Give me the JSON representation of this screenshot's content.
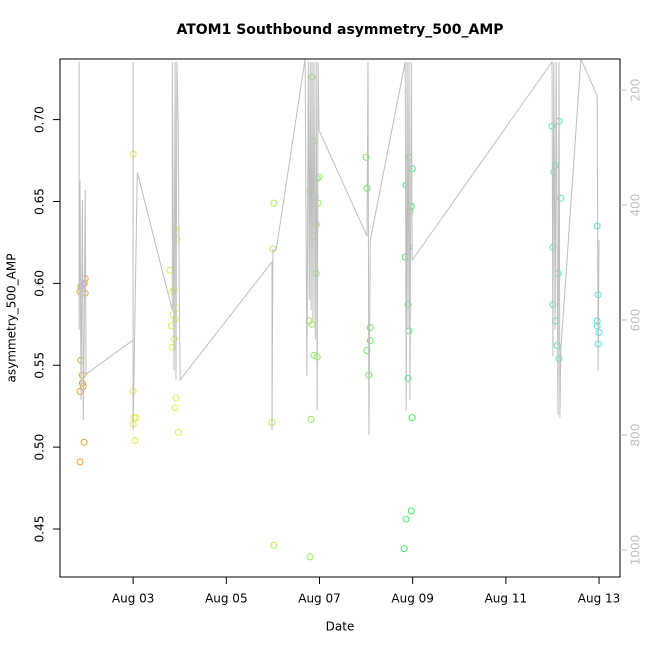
{
  "chart_data": {
    "type": "scatter",
    "title": "ATOM1 Southbound asymmetry_500_AMP",
    "x_label": "Date",
    "y_label": "asymmetry_500_AMP",
    "xlim": [
      1.43,
      13.45
    ],
    "xticks": [
      {
        "value": 3,
        "label": "Aug 03"
      },
      {
        "value": 5,
        "label": "Aug 05"
      },
      {
        "value": 7,
        "label": "Aug 07"
      },
      {
        "value": 9,
        "label": "Aug 09"
      },
      {
        "value": 11,
        "label": "Aug 11"
      },
      {
        "value": 13,
        "label": "Aug 13"
      }
    ],
    "ylim": [
      0.4207,
      0.737
    ],
    "yticks": [
      0.45,
      {
        "value": 0.5,
        "label": "0.50"
      },
      0.55,
      {
        "value": 0.6,
        "label": "0.60"
      },
      0.65,
      {
        "value": 0.7,
        "label": "0.70"
      }
    ],
    "y2lim": [
      1047,
      146
    ],
    "y2ticks": [
      200,
      400,
      600,
      800,
      1000
    ],
    "series": [
      {
        "color": "#f0a030",
        "x": [
          1.86,
          1.88,
          1.91,
          1.95,
          1.97,
          1.97,
          1.88,
          1.91,
          1.91,
          1.93,
          1.86,
          1.95,
          1.86
        ],
        "values": [
          0.595,
          0.598,
          0.599,
          0.6,
          0.603,
          0.594,
          0.553,
          0.544,
          0.539,
          0.537,
          0.534,
          0.503,
          0.491
        ]
      },
      {
        "color": "#e8e84a",
        "x": [
          3.0,
          3.0,
          3.02,
          3.06,
          3.0,
          3.04
        ],
        "values": [
          0.679,
          0.534,
          0.518,
          0.518,
          0.514,
          0.504
        ]
      },
      {
        "color": "#d8f050",
        "x": [
          3.79,
          3.9,
          3.94,
          3.84,
          3.88,
          3.82,
          3.86,
          3.9,
          3.94,
          3.88,
          3.84,
          3.92,
          3.9,
          3.97
        ],
        "values": [
          0.608,
          0.633,
          0.627,
          0.595,
          0.596,
          0.574,
          0.581,
          0.578,
          0.585,
          0.566,
          0.561,
          0.53,
          0.524,
          0.509
        ]
      },
      {
        "color": "#b0f050",
        "x": [
          6.02,
          6.0,
          5.98,
          6.02
        ],
        "values": [
          0.649,
          0.621,
          0.515,
          0.44
        ]
      },
      {
        "color": "#90ee50",
        "x": [
          6.84,
          6.86,
          6.99,
          6.95,
          6.8,
          6.91,
          6.97,
          6.84,
          6.88,
          6.93,
          6.93,
          6.78,
          6.84,
          6.88,
          6.95,
          6.82,
          6.8
        ],
        "values": [
          0.726,
          0.687,
          0.665,
          0.664,
          0.656,
          0.653,
          0.649,
          0.646,
          0.629,
          0.636,
          0.606,
          0.577,
          0.575,
          0.556,
          0.555,
          0.517,
          0.433
        ]
      },
      {
        "color": "#66ee55",
        "x": [
          8.0,
          8.02,
          8.09,
          8.09,
          8.02,
          8.06
        ],
        "values": [
          0.677,
          0.658,
          0.573,
          0.565,
          0.559,
          0.544
        ]
      },
      {
        "color": "#44ee66",
        "x": [
          8.92,
          8.86,
          8.99,
          8.97,
          8.94,
          8.92,
          8.84,
          8.9,
          8.92,
          8.9,
          8.99,
          8.97,
          8.86,
          8.82
        ],
        "values": [
          0.677,
          0.66,
          0.67,
          0.647,
          0.644,
          0.622,
          0.616,
          0.587,
          0.571,
          0.542,
          0.518,
          0.461,
          0.456,
          0.438
        ]
      },
      {
        "color": "#44eebb",
        "x": [
          11.99,
          12.14,
          12.06,
          12.03,
          12.18,
          12.01,
          12.12,
          12.01,
          12.06,
          12.1,
          12.14
        ],
        "values": [
          0.696,
          0.699,
          0.672,
          0.668,
          0.652,
          0.622,
          0.606,
          0.587,
          0.577,
          0.562,
          0.554
        ]
      },
      {
        "color": "#44eedd",
        "x": [
          12.96,
          12.98,
          12.96,
          12.96,
          13.0,
          12.98
        ],
        "values": [
          0.635,
          0.593,
          0.577,
          0.574,
          0.57,
          0.563
        ]
      },
      {
        "color": "#bebebe",
        "axis": "y2",
        "kind": "line",
        "x": [
          1.84,
          1.84,
          1.86,
          1.88,
          1.91,
          1.93,
          1.95,
          1.97,
          1.99,
          3.0,
          3.0,
          3.0,
          3.09,
          3.84,
          3.84,
          3.88,
          3.9,
          3.92,
          3.94,
          3.97,
          3.99,
          4.01,
          5.98,
          5.98,
          6.0,
          6.07,
          6.69,
          6.73,
          6.76,
          6.78,
          6.8,
          6.82,
          6.84,
          6.86,
          6.88,
          6.91,
          6.93,
          6.95,
          6.97,
          6.99,
          8.02,
          8.04,
          8.06,
          8.09,
          8.84,
          8.86,
          8.88,
          8.9,
          8.92,
          8.94,
          8.97,
          8.99,
          11.99,
          12.01,
          12.03,
          12.06,
          12.08,
          12.12,
          12.14,
          12.16,
          12.18,
          12.61,
          12.96,
          12.98,
          13.0
        ],
        "values": [
          151,
          617,
          357,
          739,
          391,
          774,
          617,
          374,
          694,
          635,
          151,
          791,
          343,
          583,
          151,
          687,
          151,
          704,
          151,
          270,
          565,
          704,
          499,
          791,
          478,
          478,
          146,
          697,
          151,
          565,
          151,
          583,
          151,
          600,
          151,
          635,
          151,
          757,
          151,
          270,
          454,
          151,
          800,
          461,
          151,
          757,
          151,
          617,
          151,
          739,
          151,
          496,
          151,
          663,
          151,
          617,
          151,
          765,
          151,
          770,
          652,
          146,
          210,
          687,
          461
        ]
      }
    ]
  }
}
